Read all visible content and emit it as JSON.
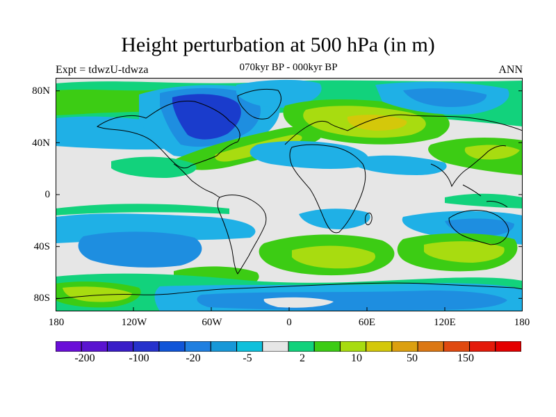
{
  "title": "Height perturbation at 500 hPa (in m)",
  "subtitle": "070kyr BP - 000kyr BP",
  "left_label": "Expt = tdwzU-tdwza",
  "right_label": "ANN",
  "y_ticks": [
    "80N",
    "40N",
    "0",
    "40S",
    "80S"
  ],
  "x_ticks": [
    "180",
    "120W",
    "60W",
    "0",
    "60E",
    "120E",
    "180"
  ],
  "colorbar_labels": [
    "-200",
    "-100",
    "-20",
    "-5",
    "2",
    "10",
    "50",
    "150"
  ],
  "colorbar_colors": [
    "#6a0fd8",
    "#5a14d0",
    "#3a1ec8",
    "#2632cc",
    "#1055d8",
    "#1f7fe0",
    "#1798d8",
    "#0ec0dc",
    "#e6e6e6",
    "#12d27c",
    "#3ccc14",
    "#a8dc10",
    "#d4c80a",
    "#dca010",
    "#dc7814",
    "#e04a10",
    "#e41a0a",
    "#e40000"
  ],
  "map_colors": {
    "neutral": "#e6e6e6",
    "light_blue": "#1fb0e6",
    "mid_blue": "#1e8ee0",
    "blue": "#1760d6",
    "dark_blue": "#1a3ccc",
    "teal": "#12d27c",
    "green": "#3ccc14",
    "yellow_green": "#a8dc10",
    "gold": "#d4c80a"
  },
  "chart_data": {
    "type": "heatmap",
    "projection": "cylindrical equidistant",
    "xlim": [
      -180,
      180
    ],
    "ylim": [
      -90,
      90
    ],
    "field": "500 hPa geopotential height difference",
    "units": "m",
    "contour_levels": [
      -200,
      -150,
      -100,
      -50,
      -20,
      -10,
      -5,
      -2,
      2,
      5,
      10,
      20,
      50,
      100,
      150,
      200
    ],
    "features": [
      {
        "name": "North America low",
        "lon": -75,
        "lat": 55,
        "level": "-100 to -50"
      },
      {
        "name": "North Atlantic ridge",
        "lon": -40,
        "lat": 38,
        "level": "10 to 20"
      },
      {
        "name": "Eurasia high",
        "lon": 45,
        "lat": 55,
        "level": "20 to 50"
      },
      {
        "name": "South Atlantic high",
        "lon": 25,
        "lat": -52,
        "level": "20 to 50"
      },
      {
        "name": "Southern Indian Ocean high",
        "lon": 120,
        "lat": -45,
        "level": "10 to 20"
      },
      {
        "name": "South Pacific low",
        "lon": -140,
        "lat": -42,
        "level": "-20 to -10"
      },
      {
        "name": "Antarctic low",
        "lon": -20,
        "lat": -72,
        "level": "-20 to -5"
      }
    ]
  }
}
